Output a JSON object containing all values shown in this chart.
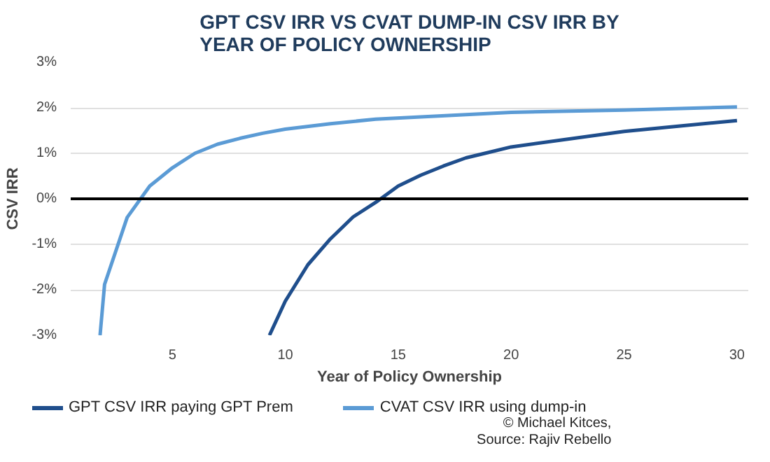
{
  "chart_data": {
    "type": "line",
    "title": "GPT CSV IRR VS CVAT DUMP-IN CSV IRR BY YEAR OF POLICY OWNERSHIP",
    "xlabel": "Year of Policy Ownership",
    "ylabel": "CSV IRR",
    "xlim": [
      0.5,
      30.5
    ],
    "xticks": [
      5,
      10,
      15,
      20,
      25,
      30
    ],
    "ylim": [
      -3,
      3
    ],
    "yticks": [
      {
        "value": -3,
        "label": "-3%"
      },
      {
        "value": -2,
        "label": "-2%"
      },
      {
        "value": -1,
        "label": "-1%"
      },
      {
        "value": 0,
        "label": "0%"
      },
      {
        "value": 1,
        "label": "1%"
      },
      {
        "value": 2,
        "label": "2%"
      },
      {
        "value": 3,
        "label": "3%"
      }
    ],
    "grid": "y",
    "legend": "bottom",
    "marker": "none",
    "line_style": "solid",
    "ref_lines": [
      {
        "axis": "y",
        "value": 0,
        "color": "#000000"
      }
    ],
    "series": [
      {
        "name": "GPT CSV IRR paying GPT Prem",
        "color": "#1f4e8c",
        "x": [
          9.3,
          10,
          11,
          12,
          13,
          14,
          15,
          16,
          17,
          18,
          19,
          20,
          25,
          30
        ],
        "values": [
          -3,
          -2.25,
          -1.45,
          -0.88,
          -0.4,
          -0.08,
          0.28,
          0.52,
          0.72,
          0.9,
          1.02,
          1.14,
          1.48,
          1.72
        ]
      },
      {
        "name": "CVAT CSV IRR using dump-in",
        "color": "#5b9bd5",
        "x": [
          1.8,
          2,
          3,
          4,
          5,
          6,
          7,
          8,
          9,
          10,
          12,
          14,
          16,
          18,
          20,
          25,
          30
        ],
        "values": [
          -3,
          -1.88,
          -0.41,
          0.28,
          0.68,
          1.0,
          1.2,
          1.33,
          1.44,
          1.53,
          1.65,
          1.75,
          1.8,
          1.85,
          1.9,
          1.95,
          2.02
        ]
      }
    ],
    "annotations": [
      "© Michael Kitces,",
      "Source: Rajiv Rebello"
    ]
  }
}
